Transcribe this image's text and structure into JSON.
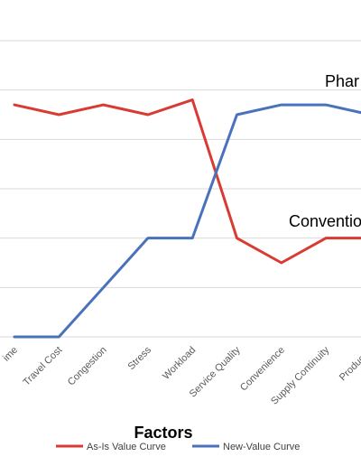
{
  "chart_data": {
    "type": "line",
    "categories": [
      "Time",
      "Travel Cost",
      "Congestion",
      "Stress",
      "Workload",
      "Service Quality",
      "Convenience",
      "Supply Continuity",
      "Productivity"
    ],
    "category_labels": [
      "ime",
      "Travel Cost",
      "Congestion",
      "Stress",
      "Workload",
      "Service Quality",
      "Convenience",
      "Supply Continuity",
      "Productivi"
    ],
    "series": [
      {
        "name": "As-Is Value Curve",
        "color": "#d93a33",
        "values": [
          4.7,
          4.5,
          4.7,
          4.5,
          4.8,
          2.0,
          1.5,
          2.0,
          2.0
        ]
      },
      {
        "name": "New-Value Curve",
        "color": "#4a72bc",
        "values": [
          0.0,
          0.0,
          1.0,
          2.0,
          2.0,
          4.5,
          4.7,
          4.7,
          4.5
        ]
      }
    ],
    "annotations": [
      {
        "text": "Phar",
        "near_series": "New-Value Curve"
      },
      {
        "text": "Conventio",
        "near_series": "As-Is Value Curve"
      }
    ],
    "xlabel": "Factors",
    "ylabel": "",
    "ylim": [
      0,
      6
    ],
    "grid": true,
    "legend_position": "bottom"
  }
}
